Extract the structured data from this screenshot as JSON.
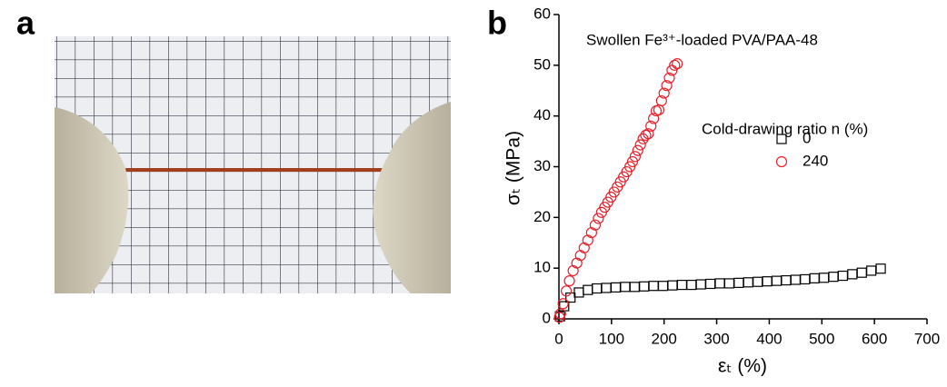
{
  "panels": {
    "a": "a",
    "b": "b"
  },
  "chart_data": {
    "type": "scatter",
    "title": "Swollen Fe³⁺-loaded PVA/PAA-48",
    "x_label": "εₜ (%)",
    "y_label": "σₜ (MPa)",
    "legend_title": "Cold-drawing ratio n (%)",
    "xlim": [
      0,
      700
    ],
    "xticks": [
      0,
      100,
      200,
      300,
      400,
      500,
      600,
      700
    ],
    "ylim": [
      0,
      60
    ],
    "yticks": [
      0,
      10,
      20,
      30,
      40,
      50,
      60
    ],
    "series": [
      {
        "name": "0",
        "color": "#000000",
        "marker": "square",
        "x": [
          2,
          10,
          22,
          38,
          55,
          72,
          90,
          108,
          126,
          144,
          162,
          180,
          198,
          216,
          234,
          252,
          270,
          288,
          306,
          324,
          342,
          360,
          378,
          396,
          414,
          432,
          450,
          468,
          486,
          504,
          522,
          540,
          558,
          576,
          594,
          612
        ],
        "values": [
          0.5,
          2.5,
          4.2,
          5.2,
          5.7,
          6.0,
          6.1,
          6.2,
          6.3,
          6.3,
          6.4,
          6.5,
          6.5,
          6.6,
          6.7,
          6.7,
          6.8,
          6.9,
          7.0,
          7.0,
          7.1,
          7.2,
          7.3,
          7.4,
          7.5,
          7.6,
          7.7,
          7.8,
          8.0,
          8.1,
          8.3,
          8.5,
          8.8,
          9.1,
          9.5,
          9.9
        ]
      },
      {
        "name": "240",
        "color": "#e8202a",
        "marker": "circle",
        "x": [
          1,
          3,
          8,
          14,
          20,
          27,
          34,
          41,
          48,
          55,
          62,
          69,
          75,
          81,
          87,
          93,
          99,
          105,
          111,
          117,
          123,
          129,
          135,
          140,
          145,
          150,
          155,
          160,
          165,
          170,
          175,
          180,
          185,
          190,
          195,
          200,
          205,
          210,
          215,
          220,
          225
        ],
        "values": [
          0.3,
          1,
          3,
          5.5,
          7.5,
          9.5,
          11,
          12.5,
          14,
          15.5,
          17,
          18.5,
          19.8,
          21,
          22,
          23,
          24,
          25,
          26,
          27,
          28,
          29,
          30,
          31,
          32,
          33.2,
          34.3,
          35.5,
          36.2,
          36.5,
          38,
          39.5,
          41,
          41.2,
          43,
          44.5,
          46,
          47.5,
          49,
          50,
          50.3
        ]
      }
    ]
  }
}
